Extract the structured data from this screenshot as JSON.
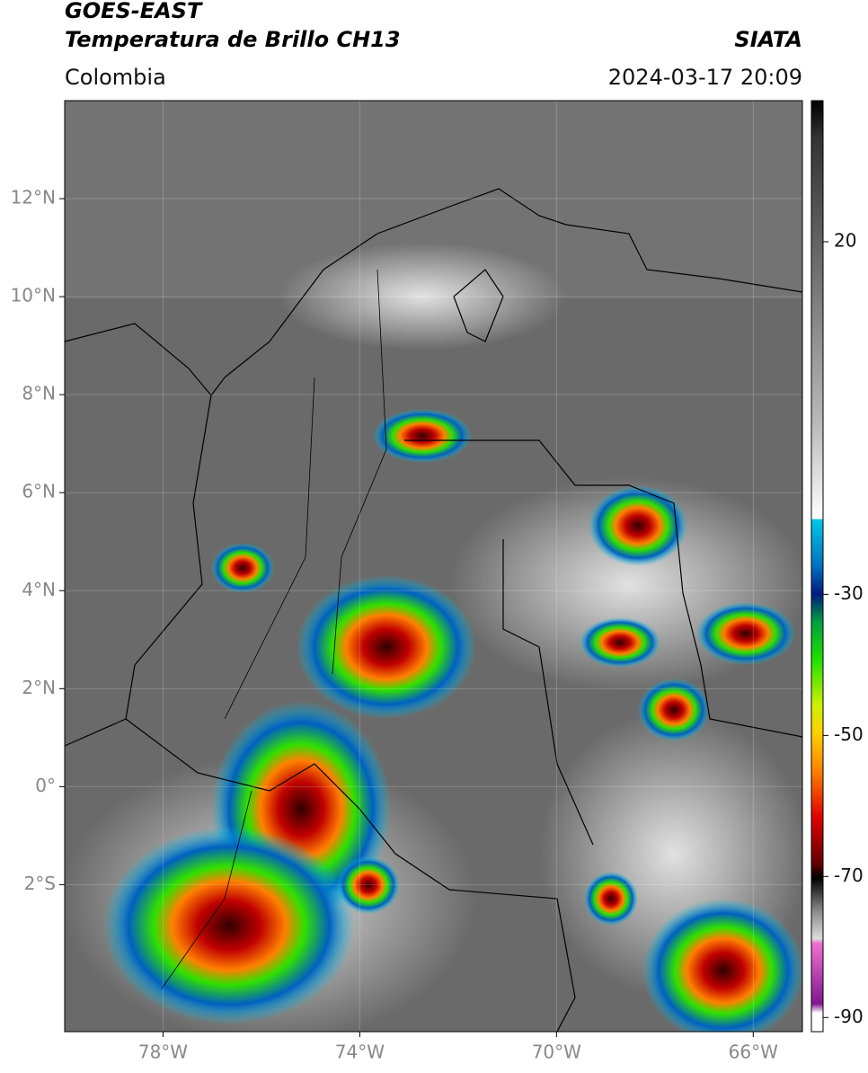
{
  "header": {
    "title_line1": "GOES-EAST",
    "title_line2": "Temperatura de Brillo CH13",
    "source": "SIATA",
    "region": "Colombia",
    "datetime": "2024-03-17 20:09"
  },
  "map": {
    "xlim": [
      -80,
      -65
    ],
    "ylim": [
      -5,
      14
    ],
    "xticks": [
      {
        "value": -78,
        "label": "78°W"
      },
      {
        "value": -74,
        "label": "74°W"
      },
      {
        "value": -70,
        "label": "70°W"
      },
      {
        "value": -66,
        "label": "66°W"
      }
    ],
    "yticks": [
      {
        "value": 12,
        "label": "12°N"
      },
      {
        "value": 10,
        "label": "10°N"
      },
      {
        "value": 8,
        "label": "8°N"
      },
      {
        "value": 6,
        "label": "6°N"
      },
      {
        "value": 4,
        "label": "4°N"
      },
      {
        "value": 2,
        "label": "2°N"
      },
      {
        "value": 0,
        "label": "0°"
      },
      {
        "value": -2,
        "label": "2°S"
      }
    ],
    "grid": true
  },
  "colorbar": {
    "lim": [
      -92,
      40
    ],
    "ticks": [
      20,
      -30,
      -50,
      -70,
      -90
    ]
  }
}
